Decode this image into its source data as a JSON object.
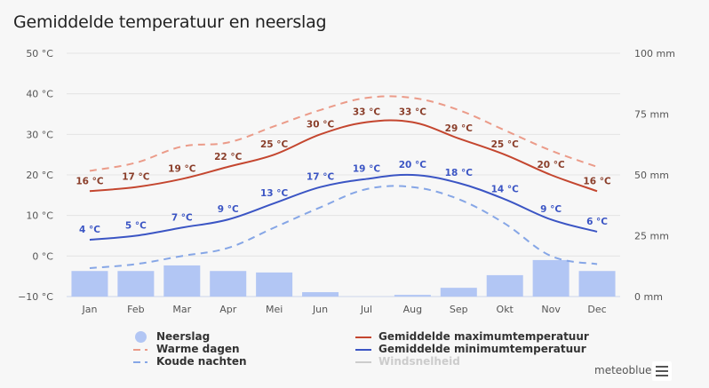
{
  "title": "Gemiddelde temperatuur en neerslag",
  "credit": "meteoblue",
  "menu_icon": "hamburger-menu-icon",
  "colors": {
    "max_temp": "#c4462f",
    "min_temp": "#3b55c4",
    "warm_days": "#eb9b89",
    "cold_nights": "#86a6e6",
    "precipitation": "#b2c6f4",
    "wind": "#cccccc",
    "max_label": "#8a3e2a",
    "min_label": "#3b55c4"
  },
  "legend": [
    {
      "label": "Neerslag",
      "symbol": "dot",
      "series": "precipitation",
      "enabled": true
    },
    {
      "label": "Warme dagen",
      "symbol": "dash",
      "series": "warm_days",
      "enabled": true
    },
    {
      "label": "Koude nachten",
      "symbol": "dash",
      "series": "cold_nights",
      "enabled": true
    },
    {
      "label": "Gemiddelde maximumtemperatuur",
      "symbol": "line",
      "series": "max_temp",
      "enabled": true
    },
    {
      "label": "Gemiddelde minimumtemperatuur",
      "symbol": "line",
      "series": "min_temp",
      "enabled": true
    },
    {
      "label": "Windsnelheid",
      "symbol": "line",
      "series": "wind",
      "enabled": false
    }
  ],
  "chart_data": {
    "type": "line",
    "title": "Gemiddelde temperatuur en neerslag",
    "categories": [
      "Jan",
      "Feb",
      "Mar",
      "Apr",
      "Mei",
      "Jun",
      "Jul",
      "Aug",
      "Sep",
      "Okt",
      "Nov",
      "Dec"
    ],
    "y_left": {
      "ticks": [
        "50 °C",
        "40 °C",
        "30 °C",
        "20 °C",
        "10 °C",
        "0 °C",
        "−10 °C"
      ],
      "range": [
        -10,
        50
      ],
      "unit": "°C"
    },
    "y_right": {
      "ticks": [
        "100 mm",
        "75 mm",
        "50 mm",
        "25 mm",
        "0 mm"
      ],
      "range": [
        0,
        100
      ],
      "unit": "mm"
    },
    "grid": true,
    "legend_position": "bottom",
    "series": [
      {
        "name": "Gemiddelde maximumtemperatuur",
        "key": "max_temp",
        "type": "line",
        "axis": "left",
        "values": [
          16,
          17,
          19,
          22,
          25,
          30,
          33,
          33,
          29,
          25,
          20,
          16
        ],
        "labels": [
          "16 °C",
          "17 °C",
          "19 °C",
          "22 °C",
          "25 °C",
          "30 °C",
          "33 °C",
          "33 °C",
          "29 °C",
          "25 °C",
          "20 °C",
          "16 °C"
        ]
      },
      {
        "name": "Gemiddelde minimumtemperatuur",
        "key": "min_temp",
        "type": "line",
        "axis": "left",
        "values": [
          4,
          5,
          7,
          9,
          13,
          17,
          19,
          20,
          18,
          14,
          9,
          6
        ],
        "labels": [
          "4 °C",
          "5 °C",
          "7 °C",
          "9 °C",
          "13 °C",
          "17 °C",
          "19 °C",
          "20 °C",
          "18 °C",
          "14 °C",
          "9 °C",
          "6 °C"
        ]
      },
      {
        "name": "Warme dagen",
        "key": "warm_days",
        "type": "line-dashed",
        "axis": "left",
        "values": [
          21,
          23,
          27,
          28,
          32,
          36,
          39,
          39,
          36,
          31,
          26,
          22
        ]
      },
      {
        "name": "Koude nachten",
        "key": "cold_nights",
        "type": "line-dashed",
        "axis": "left",
        "values": [
          -3,
          -2,
          0,
          2,
          7,
          12,
          16.5,
          17,
          14,
          8,
          0,
          -2
        ]
      },
      {
        "name": "Neerslag",
        "key": "precipitation",
        "type": "bar",
        "axis": "right",
        "values": [
          10.5,
          10.5,
          12.8,
          10.5,
          9.9,
          1.8,
          0,
          0.7,
          3.6,
          8.8,
          15,
          10.5
        ]
      }
    ]
  }
}
